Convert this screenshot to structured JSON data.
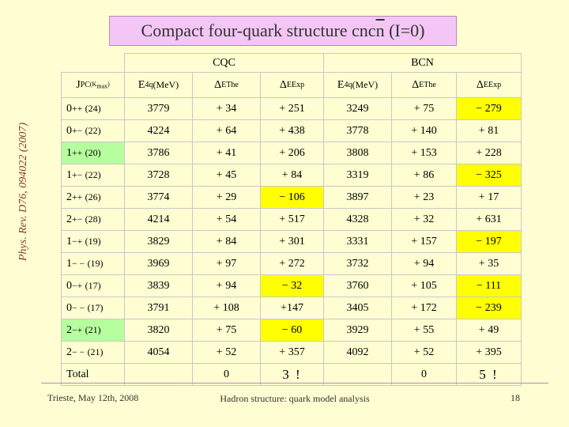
{
  "title": {
    "pre": "Compact four-quark structure cnc",
    "over": "n",
    "post": " (I=0)"
  },
  "side_ref": "Phys. Rev. D76, 094022 (2007)",
  "groups": {
    "cqc": "CQC",
    "bcn": "BCN"
  },
  "headers": {
    "jpc": {
      "main": "J",
      "sup": "PC",
      "sub": " (K",
      "subsub": "max",
      "close": ")"
    },
    "e4q": {
      "main": "E",
      "sub": "4q",
      "unit": " (MeV)"
    },
    "dthe": {
      "main": "Δ",
      "sub": "E",
      "sup": "The"
    },
    "dexp": {
      "main": "Δ",
      "sub": "E",
      "sup": "Exp"
    }
  },
  "rows": [
    {
      "state": "0",
      "pc": "++",
      "k": "(24)",
      "cqc_e": "3779",
      "cqc_dthe": "+ 34",
      "cqc_dexp": "+ 251",
      "cqc_hl": "",
      "bcn_e": "3249",
      "bcn_dthe": "+ 75",
      "bcn_dexp": "− 279",
      "bcn_hl": "y",
      "state_hl": ""
    },
    {
      "state": "0",
      "pc": "+−",
      "k": "(22)",
      "cqc_e": "4224",
      "cqc_dthe": "+ 64",
      "cqc_dexp": "+ 438",
      "cqc_hl": "",
      "bcn_e": "3778",
      "bcn_dthe": "+ 140",
      "bcn_dexp": "+ 81",
      "bcn_hl": "",
      "state_hl": ""
    },
    {
      "state": "1",
      "pc": "++",
      "k": "(20)",
      "cqc_e": "3786",
      "cqc_dthe": "+ 41",
      "cqc_dexp": "+ 206",
      "cqc_hl": "",
      "bcn_e": "3808",
      "bcn_dthe": "+ 153",
      "bcn_dexp": "+ 228",
      "bcn_hl": "",
      "state_hl": "g"
    },
    {
      "state": "1",
      "pc": "+−",
      "k": "(22)",
      "cqc_e": "3728",
      "cqc_dthe": "+ 45",
      "cqc_dexp": "+ 84",
      "cqc_hl": "",
      "bcn_e": "3319",
      "bcn_dthe": "+ 86",
      "bcn_dexp": "− 325",
      "bcn_hl": "y",
      "state_hl": ""
    },
    {
      "state": "2",
      "pc": "++",
      "k": "(26)",
      "cqc_e": "3774",
      "cqc_dthe": "+ 29",
      "cqc_dexp": "− 106",
      "cqc_hl": "y",
      "bcn_e": "3897",
      "bcn_dthe": "+ 23",
      "bcn_dexp": "+ 17",
      "bcn_hl": "",
      "state_hl": ""
    },
    {
      "state": "2",
      "pc": "+−",
      "k": "(28)",
      "cqc_e": "4214",
      "cqc_dthe": "+ 54",
      "cqc_dexp": "+ 517",
      "cqc_hl": "",
      "bcn_e": "4328",
      "bcn_dthe": "+ 32",
      "bcn_dexp": "+ 631",
      "bcn_hl": "",
      "state_hl": ""
    },
    {
      "state": "1",
      "pc": "−+",
      "k": "(19)",
      "cqc_e": "3829",
      "cqc_dthe": "+ 84",
      "cqc_dexp": "+ 301",
      "cqc_hl": "",
      "bcn_e": "3331",
      "bcn_dthe": "+ 157",
      "bcn_dexp": "− 197",
      "bcn_hl": "y",
      "state_hl": ""
    },
    {
      "state": "1",
      "pc": "− −",
      "k": "(19)",
      "cqc_e": "3969",
      "cqc_dthe": "+ 97",
      "cqc_dexp": "+ 272",
      "cqc_hl": "",
      "bcn_e": "3732",
      "bcn_dthe": "+ 94",
      "bcn_dexp": "+ 35",
      "bcn_hl": "",
      "state_hl": ""
    },
    {
      "state": "0",
      "pc": "−+",
      "k": "(17)",
      "cqc_e": "3839",
      "cqc_dthe": "+ 94",
      "cqc_dexp": "− 32",
      "cqc_hl": "y",
      "bcn_e": "3760",
      "bcn_dthe": "+ 105",
      "bcn_dexp": "− 111",
      "bcn_hl": "y",
      "state_hl": ""
    },
    {
      "state": "0",
      "pc": "− −",
      "k": "(17)",
      "cqc_e": "3791",
      "cqc_dthe": "+ 108",
      "cqc_dexp": "+147",
      "cqc_hl": "",
      "bcn_e": "3405",
      "bcn_dthe": "+ 172",
      "bcn_dexp": "− 239",
      "bcn_hl": "y",
      "state_hl": ""
    },
    {
      "state": "2",
      "pc": "−+",
      "k": "(21)",
      "cqc_e": "3820",
      "cqc_dthe": "+ 75",
      "cqc_dexp": "− 60",
      "cqc_hl": "y",
      "bcn_e": "3929",
      "bcn_dthe": "+ 55",
      "bcn_dexp": "+ 49",
      "bcn_hl": "",
      "state_hl": "g"
    },
    {
      "state": "2",
      "pc": "− −",
      "k": "(21)",
      "cqc_e": "4054",
      "cqc_dthe": "+ 52",
      "cqc_dexp": "+ 357",
      "cqc_hl": "",
      "bcn_e": "4092",
      "bcn_dthe": "+ 52",
      "bcn_dexp": "+ 395",
      "bcn_hl": "",
      "state_hl": ""
    }
  ],
  "total": {
    "label": "Total",
    "cqc_dthe": "0",
    "cqc_dexp": "3 !",
    "bcn_dthe": "0",
    "bcn_dexp": "5 !"
  },
  "footer": {
    "left": "Trieste, May 12th, 2008",
    "center": "Hadron structure: quark model analysis",
    "page": "18"
  }
}
